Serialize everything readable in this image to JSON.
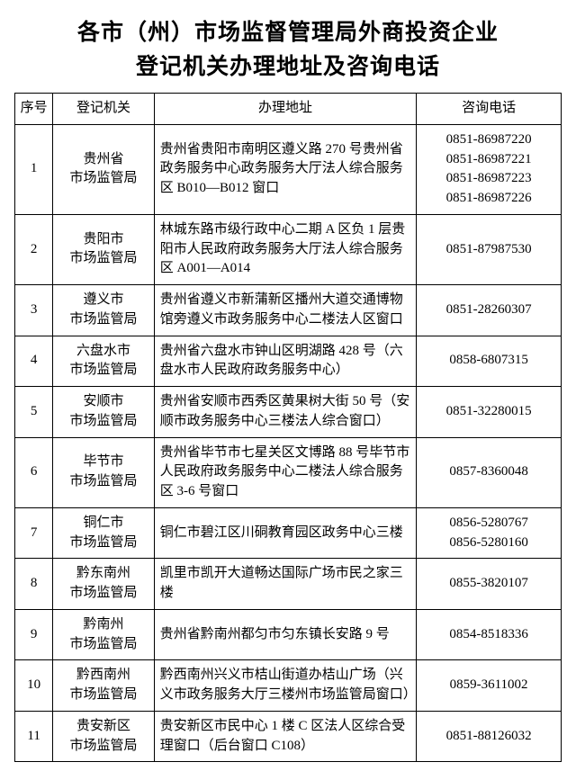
{
  "title_line1": "各市（州）市场监督管理局外商投资企业",
  "title_line2": "登记机关办理地址及咨询电话",
  "columns": {
    "seq": "序号",
    "org": "登记机关",
    "addr": "办理地址",
    "phone": "咨询电话"
  },
  "rows": [
    {
      "seq": "1",
      "org": "贵州省\n市场监管局",
      "addr": "贵州省贵阳市南明区遵义路 270 号贵州省政务服务中心政务服务大厅法人综合服务区 B010—B012 窗口",
      "phone": "0851-86987220\n0851-86987221\n0851-86987223\n0851-86987226"
    },
    {
      "seq": "2",
      "org": "贵阳市\n市场监管局",
      "addr": "林城东路市级行政中心二期 A 区负 1 层贵阳市人民政府政务服务大厅法人综合服务区 A001—A014",
      "phone": "0851-87987530"
    },
    {
      "seq": "3",
      "org": "遵义市\n市场监管局",
      "addr": "贵州省遵义市新蒲新区播州大道交通博物馆旁遵义市政务服务中心二楼法人区窗口",
      "phone": "0851-28260307"
    },
    {
      "seq": "4",
      "org": "六盘水市\n市场监管局",
      "addr": "贵州省六盘水市钟山区明湖路 428 号（六盘水市人民政府政务服务中心）",
      "phone": "0858-6807315"
    },
    {
      "seq": "5",
      "org": "安顺市\n市场监管局",
      "addr": "贵州省安顺市西秀区黄果树大街 50 号（安顺市政务服务中心三楼法人综合窗口）",
      "phone": "0851-32280015"
    },
    {
      "seq": "6",
      "org": "毕节市\n市场监管局",
      "addr": "贵州省毕节市七星关区文博路 88 号毕节市人民政府政务服务中心二楼法人综合服务区 3-6 号窗口",
      "phone": "0857-8360048"
    },
    {
      "seq": "7",
      "org": "铜仁市\n市场监管局",
      "addr": "铜仁市碧江区川硐教育园区政务中心三楼",
      "phone": "0856-5280767\n0856-5280160"
    },
    {
      "seq": "8",
      "org": "黔东南州\n市场监管局",
      "addr": "凯里市凯开大道畅达国际广场市民之家三楼",
      "phone": "0855-3820107"
    },
    {
      "seq": "9",
      "org": "黔南州\n市场监管局",
      "addr": "贵州省黔南州都匀市匀东镇长安路 9 号",
      "phone": "0854-8518336"
    },
    {
      "seq": "10",
      "org": "黔西南州\n市场监管局",
      "addr": "黔西南州兴义市桔山街道办桔山广场（兴义市政务服务大厅三楼州市场监管局窗口）",
      "phone": "0859-3611002"
    },
    {
      "seq": "11",
      "org": "贵安新区\n市场监管局",
      "addr": "贵安新区市民中心 1 楼 C 区法人区综合受理窗口（后台窗口 C108）",
      "phone": "0851-88126032"
    }
  ]
}
